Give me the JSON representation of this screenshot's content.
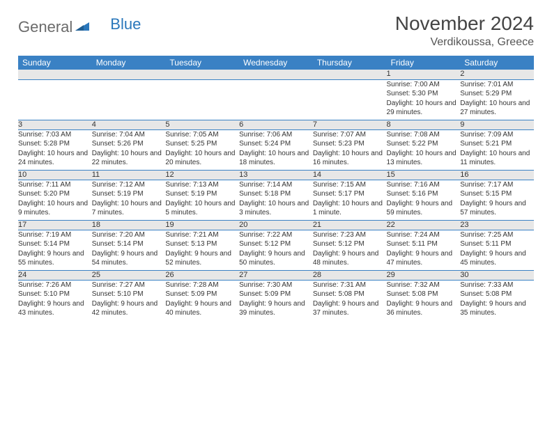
{
  "logo": {
    "text1": "General",
    "text2": "Blue"
  },
  "title": "November 2024",
  "location": "Verdikoussa, Greece",
  "colors": {
    "header_bg": "#3a81c4",
    "daynum_bg": "#e7e7e7",
    "border": "#3a81c4"
  },
  "weekdays": [
    "Sunday",
    "Monday",
    "Tuesday",
    "Wednesday",
    "Thursday",
    "Friday",
    "Saturday"
  ],
  "weeks": [
    [
      null,
      null,
      null,
      null,
      null,
      {
        "n": "1",
        "sr": "7:00 AM",
        "ss": "5:30 PM",
        "dl": "10 hours and 29 minutes."
      },
      {
        "n": "2",
        "sr": "7:01 AM",
        "ss": "5:29 PM",
        "dl": "10 hours and 27 minutes."
      }
    ],
    [
      {
        "n": "3",
        "sr": "7:03 AM",
        "ss": "5:28 PM",
        "dl": "10 hours and 24 minutes."
      },
      {
        "n": "4",
        "sr": "7:04 AM",
        "ss": "5:26 PM",
        "dl": "10 hours and 22 minutes."
      },
      {
        "n": "5",
        "sr": "7:05 AM",
        "ss": "5:25 PM",
        "dl": "10 hours and 20 minutes."
      },
      {
        "n": "6",
        "sr": "7:06 AM",
        "ss": "5:24 PM",
        "dl": "10 hours and 18 minutes."
      },
      {
        "n": "7",
        "sr": "7:07 AM",
        "ss": "5:23 PM",
        "dl": "10 hours and 16 minutes."
      },
      {
        "n": "8",
        "sr": "7:08 AM",
        "ss": "5:22 PM",
        "dl": "10 hours and 13 minutes."
      },
      {
        "n": "9",
        "sr": "7:09 AM",
        "ss": "5:21 PM",
        "dl": "10 hours and 11 minutes."
      }
    ],
    [
      {
        "n": "10",
        "sr": "7:11 AM",
        "ss": "5:20 PM",
        "dl": "10 hours and 9 minutes."
      },
      {
        "n": "11",
        "sr": "7:12 AM",
        "ss": "5:19 PM",
        "dl": "10 hours and 7 minutes."
      },
      {
        "n": "12",
        "sr": "7:13 AM",
        "ss": "5:19 PM",
        "dl": "10 hours and 5 minutes."
      },
      {
        "n": "13",
        "sr": "7:14 AM",
        "ss": "5:18 PM",
        "dl": "10 hours and 3 minutes."
      },
      {
        "n": "14",
        "sr": "7:15 AM",
        "ss": "5:17 PM",
        "dl": "10 hours and 1 minute."
      },
      {
        "n": "15",
        "sr": "7:16 AM",
        "ss": "5:16 PM",
        "dl": "9 hours and 59 minutes."
      },
      {
        "n": "16",
        "sr": "7:17 AM",
        "ss": "5:15 PM",
        "dl": "9 hours and 57 minutes."
      }
    ],
    [
      {
        "n": "17",
        "sr": "7:19 AM",
        "ss": "5:14 PM",
        "dl": "9 hours and 55 minutes."
      },
      {
        "n": "18",
        "sr": "7:20 AM",
        "ss": "5:14 PM",
        "dl": "9 hours and 54 minutes."
      },
      {
        "n": "19",
        "sr": "7:21 AM",
        "ss": "5:13 PM",
        "dl": "9 hours and 52 minutes."
      },
      {
        "n": "20",
        "sr": "7:22 AM",
        "ss": "5:12 PM",
        "dl": "9 hours and 50 minutes."
      },
      {
        "n": "21",
        "sr": "7:23 AM",
        "ss": "5:12 PM",
        "dl": "9 hours and 48 minutes."
      },
      {
        "n": "22",
        "sr": "7:24 AM",
        "ss": "5:11 PM",
        "dl": "9 hours and 47 minutes."
      },
      {
        "n": "23",
        "sr": "7:25 AM",
        "ss": "5:11 PM",
        "dl": "9 hours and 45 minutes."
      }
    ],
    [
      {
        "n": "24",
        "sr": "7:26 AM",
        "ss": "5:10 PM",
        "dl": "9 hours and 43 minutes."
      },
      {
        "n": "25",
        "sr": "7:27 AM",
        "ss": "5:10 PM",
        "dl": "9 hours and 42 minutes."
      },
      {
        "n": "26",
        "sr": "7:28 AM",
        "ss": "5:09 PM",
        "dl": "9 hours and 40 minutes."
      },
      {
        "n": "27",
        "sr": "7:30 AM",
        "ss": "5:09 PM",
        "dl": "9 hours and 39 minutes."
      },
      {
        "n": "28",
        "sr": "7:31 AM",
        "ss": "5:08 PM",
        "dl": "9 hours and 37 minutes."
      },
      {
        "n": "29",
        "sr": "7:32 AM",
        "ss": "5:08 PM",
        "dl": "9 hours and 36 minutes."
      },
      {
        "n": "30",
        "sr": "7:33 AM",
        "ss": "5:08 PM",
        "dl": "9 hours and 35 minutes."
      }
    ]
  ],
  "labels": {
    "sunrise": "Sunrise:",
    "sunset": "Sunset:",
    "daylight": "Daylight:"
  }
}
